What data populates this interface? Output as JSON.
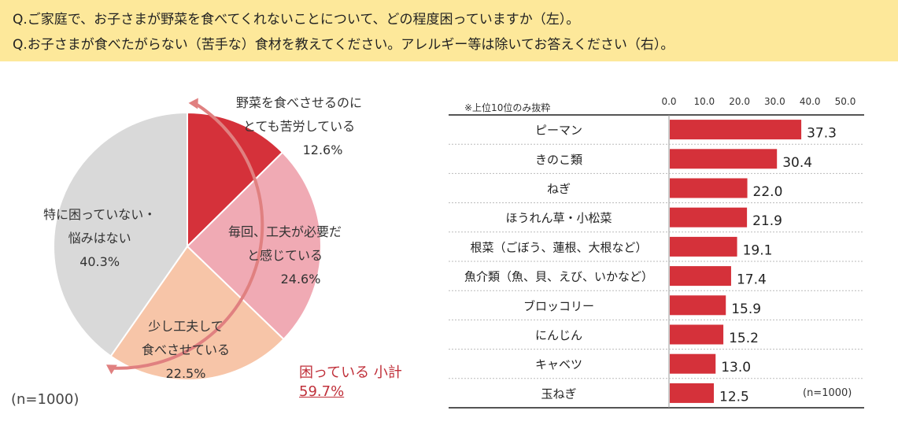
{
  "header": {
    "q1": "Q.ご家庭で、お子さまが野菜を食べてくれないことについて、どの程度困っていますか（左）。",
    "q2": "Q.お子さまが食べたがらない（苦手な）食材を教えてください。アレルギー等は除いてお答えください（右）。"
  },
  "colors": {
    "header_bg": "#fde89a",
    "bar": "#d5313a",
    "slice1": "#d5313a",
    "slice2": "#f0aab4",
    "slice3": "#f7c5a8",
    "slice4": "#d9d9d9",
    "arc": "#e08080"
  },
  "pie_labels": [
    {
      "line1": "野菜を食べさせるのに",
      "line2": "とても苦労している",
      "pct": "12.6%"
    },
    {
      "line1": "毎回、工夫が必要だ",
      "line2": "と感じている",
      "pct": "24.6%"
    },
    {
      "line1": "少し工夫して",
      "line2": "食べさせている",
      "pct": "22.5%"
    },
    {
      "line1": "特に困っていない・",
      "line2": "悩みはない",
      "pct": "40.3%"
    }
  ],
  "pie_note": "(n=1000)",
  "subtotal": {
    "label": "困っている 小計",
    "value": "59.7%"
  },
  "bar_note_top": "※上位10位のみ抜粋",
  "bar_note_n": "(n=1000)",
  "chart_data": [
    {
      "type": "pie",
      "categories": [
        "野菜を食べさせるのにとても苦労している",
        "毎回、工夫が必要だと感じている",
        "少し工夫して食べさせている",
        "特に困っていない・悩みはない"
      ],
      "values": [
        12.6,
        24.6,
        22.5,
        40.3
      ]
    },
    {
      "type": "bar",
      "orientation": "horizontal",
      "categories": [
        "ピーマン",
        "きのこ類",
        "ねぎ",
        "ほうれん草・小松菜",
        "根菜（ごぼう、蓮根、大根など）",
        "魚介類（魚、貝、えび、いかなど）",
        "ブロッコリー",
        "にんじん",
        "キャベツ",
        "玉ねぎ"
      ],
      "values": [
        37.3,
        30.4,
        22.0,
        21.9,
        19.1,
        17.4,
        15.9,
        15.2,
        13.0,
        12.5
      ],
      "value_labels": [
        "37.3",
        "30.4",
        "22.0",
        "21.9",
        "19.1",
        "17.4",
        "15.9",
        "15.2",
        "13.0",
        "12.5"
      ],
      "xlim": [
        0,
        50
      ],
      "xticks": [
        "0.0",
        "10.0",
        "20.0",
        "30.0",
        "40.0",
        "50.0"
      ],
      "grid": false
    }
  ]
}
